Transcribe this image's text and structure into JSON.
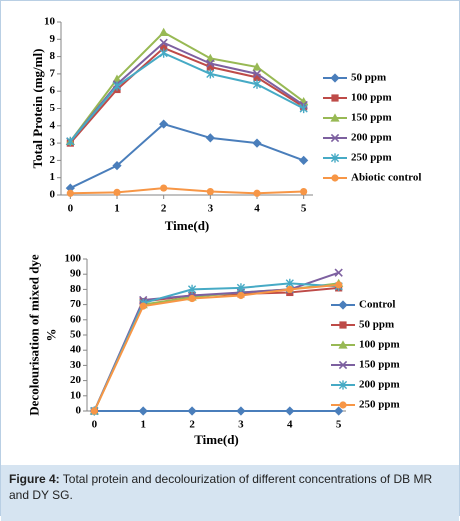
{
  "chart_data": [
    {
      "type": "line",
      "x_label": "Time(d)",
      "y_label": [
        "Total Protein (mg/ml)"
      ],
      "x": [
        0,
        1,
        2,
        3,
        4,
        5
      ],
      "xlim": [
        -0.2,
        5.2
      ],
      "xticks": [
        0,
        1,
        2,
        3,
        4,
        5
      ],
      "ylim": [
        0,
        10
      ],
      "yticks": [
        0,
        1,
        2,
        3,
        4,
        5,
        6,
        7,
        8,
        9,
        10
      ],
      "series": [
        {
          "name": "50 ppm",
          "color": "#4a7ebb",
          "marker": "diamond",
          "values": [
            0.4,
            1.7,
            4.1,
            3.3,
            3.0,
            2.0
          ]
        },
        {
          "name": "100 ppm",
          "color": "#be4b48",
          "marker": "square",
          "values": [
            3.0,
            6.1,
            8.5,
            7.4,
            6.8,
            5.1
          ]
        },
        {
          "name": "150 ppm",
          "color": "#98b954",
          "marker": "triangle",
          "values": [
            3.1,
            6.7,
            9.4,
            7.9,
            7.4,
            5.4
          ]
        },
        {
          "name": "200 ppm",
          "color": "#7d60a0",
          "marker": "x",
          "values": [
            3.1,
            6.4,
            8.8,
            7.6,
            7.0,
            5.2
          ]
        },
        {
          "name": "250 ppm",
          "color": "#46aac5",
          "marker": "star",
          "values": [
            3.1,
            6.3,
            8.2,
            7.0,
            6.4,
            5.0
          ]
        },
        {
          "name": "Abiotic control",
          "color": "#f79646",
          "marker": "circle",
          "values": [
            0.1,
            0.15,
            0.4,
            0.2,
            0.1,
            0.2
          ]
        }
      ]
    },
    {
      "type": "line",
      "x_label": "Time(d)",
      "y_label": [
        "Decolourisation of mixed dye",
        "%"
      ],
      "x": [
        0,
        1,
        2,
        3,
        4,
        5
      ],
      "xlim": [
        -0.15,
        5.15
      ],
      "xticks": [
        0,
        1,
        2,
        3,
        4,
        5
      ],
      "ylim": [
        0,
        100
      ],
      "yticks": [
        0,
        10,
        20,
        30,
        40,
        50,
        60,
        70,
        80,
        90,
        100
      ],
      "series": [
        {
          "name": "Control",
          "color": "#4a7ebb",
          "marker": "diamond",
          "values": [
            0,
            0,
            0,
            0,
            0,
            0
          ]
        },
        {
          "name": "50 ppm",
          "color": "#be4b48",
          "marker": "square",
          "values": [
            0,
            72,
            76,
            77,
            78,
            81
          ]
        },
        {
          "name": "100 ppm",
          "color": "#98b954",
          "marker": "triangle",
          "values": [
            0,
            70,
            75,
            78,
            80,
            84
          ]
        },
        {
          "name": "150 ppm",
          "color": "#7d60a0",
          "marker": "x",
          "values": [
            0,
            73,
            76,
            78,
            80,
            91
          ]
        },
        {
          "name": "200 ppm",
          "color": "#46aac5",
          "marker": "star",
          "values": [
            0,
            71,
            80,
            81,
            84,
            82
          ]
        },
        {
          "name": "250 ppm",
          "color": "#f79646",
          "marker": "circle",
          "values": [
            0,
            69,
            74,
            76,
            80,
            83
          ]
        }
      ]
    }
  ],
  "caption": {
    "label": "Figure 4:",
    "text": "Total protein and decolourization of different concentrations of DB MR and DY SG."
  }
}
